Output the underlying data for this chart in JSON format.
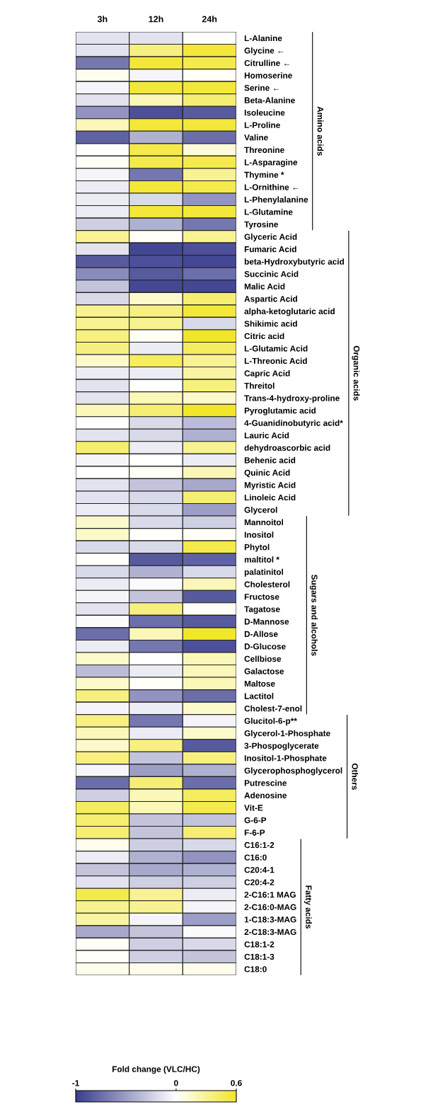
{
  "chart_data": {
    "type": "heatmap",
    "clabel": "Fold change (VLC/HC)",
    "clim": [
      -1,
      0.6
    ],
    "cticks": [
      -1,
      0,
      0.6
    ],
    "categories": [
      "3h",
      "12h",
      "24h"
    ],
    "y_categories": [
      "L-Alanine",
      "Glycine ←",
      "Citrulline ←",
      "Homoserine",
      "Serine ←",
      "Beta-Alanine",
      "Isoleucine",
      "L-Proline",
      "Valine",
      "Threonine",
      "L-Asparagine",
      "Thymine *",
      "L-Ornithine ←",
      "L-Phenylalanine",
      "L-Glutamine",
      "Tyrosine",
      "Glyceric Acid",
      "Fumaric Acid",
      "beta-Hydroxybutyric acid",
      "Succinic Acid",
      "Malic Acid",
      "Aspartic Acid",
      "alpha-ketoglutaric acid",
      "Shikimic acid",
      "Citric acid",
      "L-Glutamic Acid",
      "L-Threonic Acid",
      "Capric Acid",
      "Threitol",
      "Trans-4-hydroxy-proline",
      "Pyroglutamic acid",
      "4-Guanidinobutyric acid*",
      "Lauric Acid",
      "dehydroascorbic acid",
      "Behenic acid",
      "Quinic Acid",
      "Myristic Acid",
      "Linoleic Acid",
      "Glycerol",
      "Mannoitol",
      "Inositol",
      "Phytol",
      "maltitol *",
      "palatinitol",
      "Cholesterol",
      "Fructose",
      "Tagatose",
      "D-Mannose",
      "D-Allose",
      "D-Glucose",
      "Cellbiose",
      "Galactose",
      "Maltose",
      "Lactitol",
      "Cholest-7-enol",
      "Glucitol-6-p**",
      "Glycerol-1-Phosphate",
      "3-Phospoglycerate",
      "Inositol-1-Phosphate",
      "Glycerophosphoglycerol",
      "Putrescine",
      "Adenosine",
      "Vit-E",
      "G-6-P",
      "F-6-P",
      "C16:1-2",
      "C16:0",
      "C20:4-1",
      "C20:4-2",
      "2-C16:1 MAG",
      "2-C16:0-MAG",
      "1-C18:3-MAG",
      "2-C18:3-MAG",
      "C18:1-2",
      "C18:1-3",
      "C18:0"
    ],
    "cells": [
      [
        -0.15,
        -0.15,
        0
      ],
      [
        -0.15,
        0.35,
        0.55
      ],
      [
        -0.7,
        0.55,
        0.5
      ],
      [
        0.05,
        -0.05,
        0.02
      ],
      [
        -0.05,
        0.55,
        0.55
      ],
      [
        -0.15,
        0.2,
        0.4
      ],
      [
        -0.55,
        -0.9,
        -0.85
      ],
      [
        0.2,
        0.55,
        0.55
      ],
      [
        -0.8,
        -0.4,
        -0.75
      ],
      [
        0,
        0.5,
        0.1
      ],
      [
        0.03,
        0.5,
        0.5
      ],
      [
        -0.05,
        -0.7,
        0.3
      ],
      [
        -0.1,
        0.55,
        0.5
      ],
      [
        -0.1,
        -0.2,
        -0.55
      ],
      [
        -0.1,
        0.55,
        0.55
      ],
      [
        -0.25,
        -0.4,
        -0.7
      ],
      [
        0.3,
        0.02,
        0.3
      ],
      [
        -0.15,
        -0.95,
        -0.9
      ],
      [
        -0.85,
        -0.9,
        -0.95
      ],
      [
        -0.6,
        -0.85,
        -0.75
      ],
      [
        -0.3,
        -0.95,
        -0.95
      ],
      [
        -0.2,
        0.15,
        0.4
      ],
      [
        0.3,
        0.35,
        0.55
      ],
      [
        0.3,
        0.3,
        -0.2
      ],
      [
        0.35,
        0.03,
        0.6
      ],
      [
        0.35,
        -0.1,
        0.45
      ],
      [
        0.15,
        0.45,
        0.3
      ],
      [
        -0.1,
        -0.1,
        0.25
      ],
      [
        -0.15,
        0,
        0.35
      ],
      [
        -0.15,
        0.2,
        0.15
      ],
      [
        0.2,
        0.4,
        0.6
      ],
      [
        0,
        -0.2,
        -0.35
      ],
      [
        -0.15,
        -0.2,
        -0.4
      ],
      [
        0.4,
        -0.1,
        0.3
      ],
      [
        -0.05,
        0,
        -0.1
      ],
      [
        0,
        0.03,
        0.2
      ],
      [
        -0.15,
        -0.3,
        -0.45
      ],
      [
        -0.15,
        -0.2,
        0.4
      ],
      [
        -0.1,
        -0.2,
        -0.5
      ],
      [
        0.15,
        -0.2,
        -0.25
      ],
      [
        0.15,
        0,
        0.02
      ],
      [
        -0.2,
        -0.2,
        0.5
      ],
      [
        0,
        -0.85,
        -0.8
      ],
      [
        -0.2,
        -0.4,
        -0.2
      ],
      [
        -0.1,
        -0.02,
        0.2
      ],
      [
        -0.05,
        -0.3,
        -0.85
      ],
      [
        -0.15,
        0.35,
        0.03
      ],
      [
        -0.02,
        -0.75,
        -0.85
      ],
      [
        -0.75,
        0.2,
        0.6
      ],
      [
        -0.1,
        -0.7,
        -0.9
      ],
      [
        0.15,
        0,
        0.2
      ],
      [
        -0.35,
        -0.1,
        0.2
      ],
      [
        0.15,
        0.02,
        0.2
      ],
      [
        0.35,
        -0.55,
        -0.75
      ],
      [
        -0.05,
        -0.1,
        0.15
      ],
      [
        0.35,
        -0.7,
        -0.05
      ],
      [
        0.2,
        -0.1,
        0.15
      ],
      [
        0.15,
        0.35,
        -0.85
      ],
      [
        0.35,
        -0.3,
        0.35
      ],
      [
        -0.05,
        -0.5,
        -0.4
      ],
      [
        -0.75,
        0.4,
        -0.75
      ],
      [
        -0.25,
        0.2,
        0.45
      ],
      [
        0.45,
        0.2,
        0.5
      ],
      [
        0.4,
        -0.3,
        -0.3
      ],
      [
        0.4,
        -0.3,
        0.4
      ],
      [
        0.05,
        -0.25,
        -0.2
      ],
      [
        -0.1,
        -0.4,
        -0.55
      ],
      [
        -0.3,
        -0.45,
        -0.4
      ],
      [
        -0.15,
        -0.25,
        -0.25
      ],
      [
        0.5,
        0.3,
        -0.1
      ],
      [
        0.3,
        0.3,
        -0.05
      ],
      [
        0.25,
        -0.05,
        -0.5
      ],
      [
        -0.45,
        -0.3,
        -0.02
      ],
      [
        0.02,
        -0.25,
        -0.2
      ],
      [
        0.02,
        -0.25,
        -0.3
      ],
      [
        0.05,
        0.05,
        0.05
      ]
    ],
    "annotations": [
      "Amino acids",
      "Organic acids",
      "Sugars and alcohols",
      "Others",
      "Fatty acids"
    ]
  }
}
